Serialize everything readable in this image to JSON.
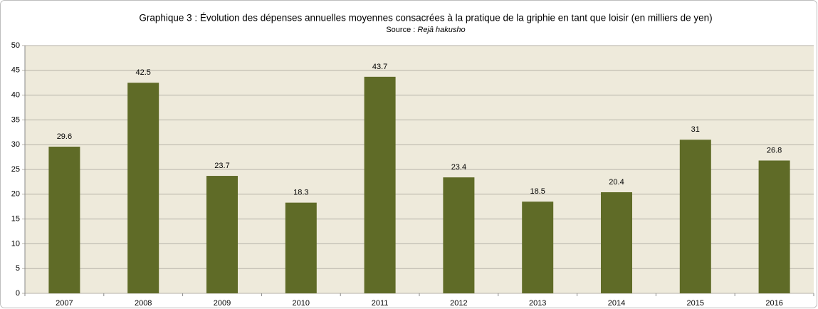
{
  "chart_data": {
    "type": "bar",
    "title": "Graphique 3 : Évolution des dépenses annuelles moyennes consacrées à la pratique de la griphie en tant que loisir  (en milliers de yen)",
    "source_label": "Source :",
    "source": "Rejâ hakusho",
    "categories": [
      "2007",
      "2008",
      "2009",
      "2010",
      "2011",
      "2012",
      "2013",
      "2014",
      "2015",
      "2016"
    ],
    "values": [
      29.6,
      42.5,
      23.7,
      18.3,
      43.7,
      23.4,
      18.5,
      20.4,
      31,
      26.8
    ],
    "color": "#5f6b27",
    "ylim": [
      0,
      50
    ],
    "yticks": [
      0,
      5,
      10,
      15,
      20,
      25,
      30,
      35,
      40,
      45,
      50
    ],
    "grid": true
  }
}
